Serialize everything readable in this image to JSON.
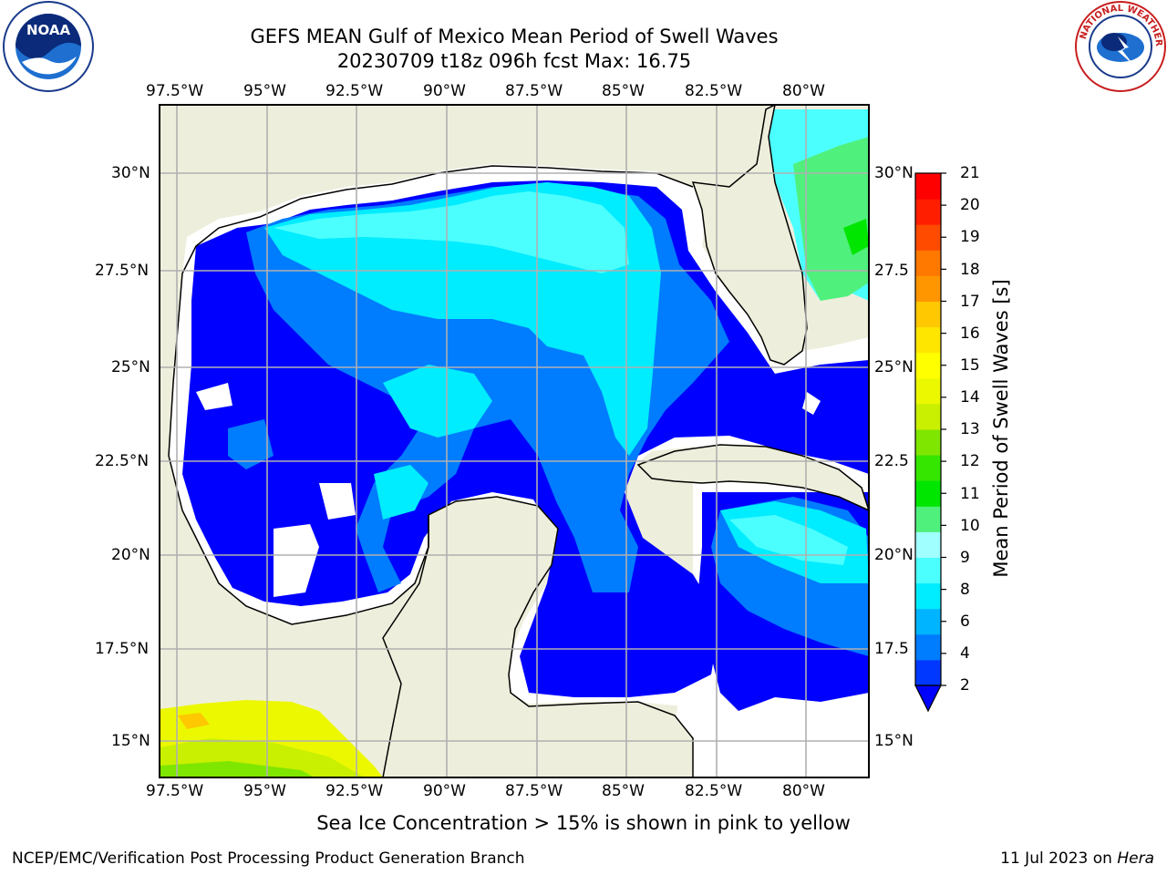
{
  "title": {
    "line1": "GEFS MEAN Gulf of Mexico Mean Period of Swell Waves",
    "line2": "20230709 t18z 096h fcst   Max: 16.75"
  },
  "map": {
    "lon_ticks": [
      "97.5°W",
      "95°W",
      "92.5°W",
      "90°W",
      "87.5°W",
      "85°W",
      "82.5°W",
      "80°W"
    ],
    "lat_ticks_left": [
      "30°N",
      "27.5°N",
      "25°N",
      "22.5°N",
      "20°N",
      "17.5°N",
      "15°N"
    ],
    "lat_ticks_right": [
      "30°N",
      "27.5",
      "25°N",
      "22.5",
      "20°N",
      "17.5",
      "15°N"
    ],
    "land_color": "#eeeedc",
    "grid_color": "#b0b0b0"
  },
  "colorbar": {
    "label": "Mean Period of Swell Waves [s]",
    "ticks": [
      "21",
      "20",
      "19",
      "18",
      "17",
      "16",
      "15",
      "14",
      "13",
      "12",
      "11",
      "10",
      "9",
      "8",
      "6",
      "4",
      "2"
    ],
    "colors": [
      "#0038ff",
      "#007cff",
      "#00b4ff",
      "#00ecff",
      "#4cffff",
      "#a0ffff",
      "#50f07c",
      "#00e600",
      "#34e600",
      "#7fe600",
      "#c8f000",
      "#ecf800",
      "#ffff00",
      "#ffe600",
      "#ffc800",
      "#ff9600",
      "#ff7800",
      "#ff4b00",
      "#ff1e00",
      "#ff0000"
    ],
    "extend_color": "#0000ff"
  },
  "note": "Sea Ice Concentration > 15% is shown in pink to yellow",
  "footer": {
    "left": "NCEP/EMC/Verification Post Processing Product Generation Branch",
    "date": "11 Jul 2023 on ",
    "machine": "Hera"
  },
  "logos": {
    "noaa_text": "NOAA",
    "nws_text": "NATIONAL WEATHER SERVICE"
  }
}
